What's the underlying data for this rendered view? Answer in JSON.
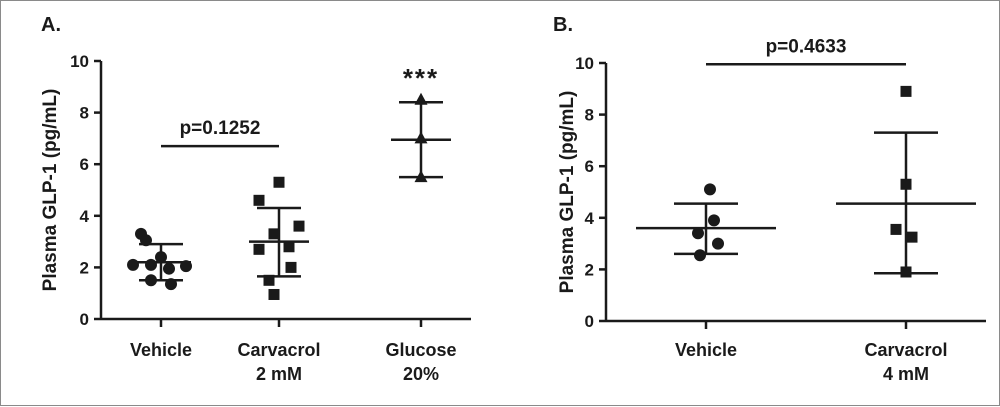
{
  "chart_data": [
    {
      "panel": "A.",
      "type": "scatter",
      "ylabel": "Plasma GLP-1 (pg/mL)",
      "ylim": [
        0,
        10
      ],
      "yticks": [
        0,
        2,
        4,
        6,
        8,
        10
      ],
      "categories": [
        {
          "label": [
            "Vehicle"
          ],
          "marker": "circle",
          "points": [
            3.3,
            3.05,
            2.4,
            2.1,
            2.1,
            2.05,
            1.95,
            1.5,
            1.35
          ],
          "mean": 2.2,
          "sd_low": 1.5,
          "sd_high": 2.9
        },
        {
          "label": [
            "Carvacrol",
            "2 mM"
          ],
          "marker": "square",
          "points": [
            5.3,
            4.6,
            3.6,
            3.3,
            2.8,
            2.7,
            2.0,
            1.5,
            0.95
          ],
          "mean": 3.0,
          "sd_low": 1.65,
          "sd_high": 4.3
        },
        {
          "label": [
            "Glucose",
            "20%"
          ],
          "marker": "triangle",
          "points": [
            8.5,
            7.0,
            5.5
          ],
          "mean": 6.95,
          "sd_low": 5.5,
          "sd_high": 8.4
        }
      ],
      "annotations": [
        {
          "text": "p=0.1252",
          "span": [
            0,
            1
          ],
          "y": 6.7
        },
        {
          "text": "***",
          "category": 2
        }
      ]
    },
    {
      "panel": "B.",
      "type": "scatter",
      "ylabel": "Plasma GLP-1 (pg/mL)",
      "ylim": [
        0,
        10
      ],
      "yticks": [
        0,
        2,
        4,
        6,
        8,
        10
      ],
      "categories": [
        {
          "label": [
            "Vehicle"
          ],
          "marker": "circle",
          "points": [
            5.1,
            3.9,
            3.4,
            3.0,
            2.55
          ],
          "mean": 3.6,
          "sd_low": 2.6,
          "sd_high": 4.55
        },
        {
          "label": [
            "Carvacrol",
            "4 mM"
          ],
          "marker": "square",
          "points": [
            8.9,
            5.3,
            3.55,
            3.25,
            1.9
          ],
          "mean": 4.55,
          "sd_low": 1.85,
          "sd_high": 7.3
        }
      ],
      "annotations": [
        {
          "text": "p=0.4633",
          "span": [
            0,
            1
          ],
          "y": 9.95
        }
      ]
    }
  ]
}
